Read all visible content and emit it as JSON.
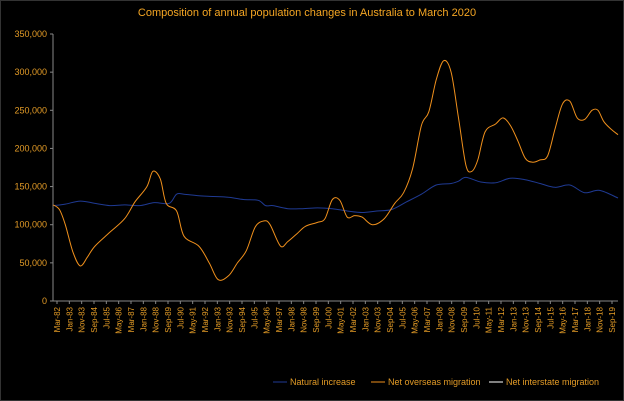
{
  "chart_data": {
    "type": "line",
    "title": "Composition of annual population changes in Australia to March 2020",
    "xlabel": "",
    "ylabel": "",
    "ylim": [
      0,
      350000
    ],
    "yticks": [
      "0",
      "50,000",
      "100,000",
      "150,000",
      "200,000",
      "250,000",
      "300,000",
      "350,000"
    ],
    "yticks_values": [
      0,
      50000,
      100000,
      150000,
      200000,
      250000,
      300000,
      350000
    ],
    "xticks": [
      "Mar-82",
      "Jan-83",
      "Nov-83",
      "Sep-84",
      "Jul-85",
      "May-86",
      "Mar-87",
      "Jan-88",
      "Nov-88",
      "Sep-89",
      "Jul-90",
      "May-91",
      "Mar-92",
      "Jan-93",
      "Nov-93",
      "Sep-94",
      "Jul-95",
      "May-96",
      "Mar-97",
      "Jan-98",
      "Nov-98",
      "Sep-99",
      "Jul-00",
      "May-01",
      "Mar-02",
      "Jan-03",
      "Nov-03",
      "Sep-04",
      "Jul-05",
      "May-06",
      "Mar-07",
      "Jan-08",
      "Nov-08",
      "Sep-09",
      "Jul-10",
      "May-11",
      "Mar-12",
      "Jan-13",
      "Nov-13",
      "Sep-14",
      "Jul-15",
      "May-16",
      "Mar-17",
      "Jan-18",
      "Nov-18",
      "Sep-19"
    ],
    "x_range": [
      1982.17,
      2020.25
    ],
    "grid": false,
    "legend_position": "bottom-right",
    "series": [
      {
        "name": "Natural increase",
        "color": "#1f3a93",
        "x": [
          1982.17,
          1983.0,
          1984.0,
          1985.0,
          1986.0,
          1987.0,
          1988.0,
          1989.0,
          1990.0,
          1990.5,
          1991.0,
          1992.0,
          1993.0,
          1994.0,
          1995.0,
          1996.0,
          1996.5,
          1997.0,
          1998.0,
          1999.0,
          2000.0,
          2001.0,
          2002.0,
          2003.0,
          2004.0,
          2005.0,
          2006.0,
          2007.0,
          2008.0,
          2009.0,
          2009.5,
          2010.0,
          2011.0,
          2012.0,
          2013.0,
          2014.0,
          2015.0,
          2016.0,
          2017.0,
          2018.0,
          2019.0,
          2020.25
        ],
        "values": [
          125000,
          127000,
          131000,
          128000,
          125000,
          126000,
          125000,
          129000,
          128000,
          140000,
          140000,
          138000,
          137000,
          136000,
          133000,
          132000,
          125000,
          125000,
          121000,
          121000,
          122000,
          121000,
          118000,
          116000,
          118000,
          120000,
          130000,
          140000,
          152000,
          154000,
          157000,
          162000,
          156000,
          155000,
          161000,
          159000,
          154000,
          149000,
          152000,
          142000,
          145000,
          135000
        ]
      },
      {
        "name": "Net overseas migration",
        "color": "#f0901c",
        "x": [
          1982.17,
          1982.6,
          1983.0,
          1983.5,
          1984.0,
          1984.5,
          1985.0,
          1986.0,
          1987.0,
          1987.7,
          1988.5,
          1988.9,
          1989.4,
          1989.8,
          1990.5,
          1991.0,
          1992.0,
          1992.7,
          1993.3,
          1994.0,
          1994.6,
          1995.2,
          1995.8,
          1996.4,
          1996.8,
          1997.5,
          1998.0,
          1998.6,
          1999.2,
          2000.0,
          2000.5,
          2001.0,
          2001.5,
          2002.0,
          2002.5,
          2003.0,
          2003.7,
          2004.5,
          2005.2,
          2005.8,
          2006.4,
          2007.0,
          2007.5,
          2008.0,
          2008.5,
          2009.0,
          2009.5,
          2010.0,
          2010.4,
          2010.8,
          2011.3,
          2012.0,
          2012.5,
          2013.0,
          2013.5,
          2014.0,
          2014.5,
          2015.0,
          2015.5,
          2016.0,
          2016.5,
          2017.0,
          2017.5,
          2018.0,
          2018.5,
          2018.9,
          2019.3,
          2019.8,
          2020.25
        ],
        "values": [
          126000,
          120000,
          100000,
          65000,
          46000,
          58000,
          72000,
          90000,
          108000,
          130000,
          150000,
          170000,
          160000,
          128000,
          118000,
          85000,
          72000,
          50000,
          28000,
          33000,
          50000,
          66000,
          97000,
          105000,
          100000,
          72000,
          78000,
          88000,
          98000,
          103000,
          108000,
          133000,
          132000,
          110000,
          112000,
          110000,
          100000,
          108000,
          128000,
          142000,
          173000,
          230000,
          248000,
          290000,
          315000,
          300000,
          240000,
          178000,
          170000,
          185000,
          222000,
          232000,
          240000,
          230000,
          210000,
          187000,
          182000,
          185000,
          190000,
          225000,
          258000,
          262000,
          240000,
          238000,
          250000,
          250000,
          235000,
          225000,
          218000
        ]
      },
      {
        "name": "Net interstate migration",
        "color": "#ffffff",
        "x": [],
        "values": []
      }
    ]
  }
}
